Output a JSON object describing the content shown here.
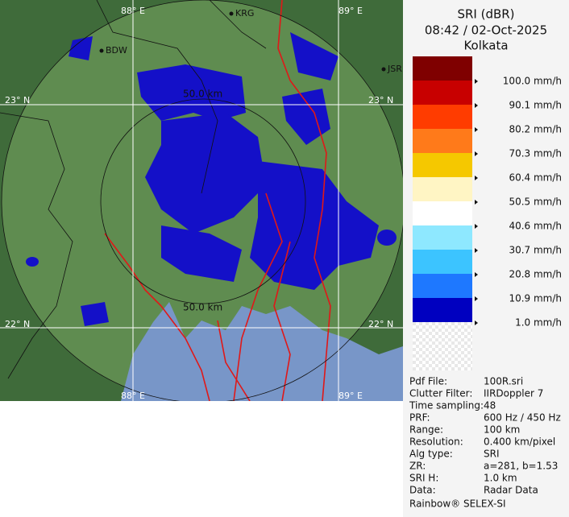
{
  "header": {
    "product": "SRI (dBR)",
    "time": "08:42 / 02-Oct-2025",
    "site": "Kolkata"
  },
  "map": {
    "grid_labels": [
      "88° E",
      "89° E",
      "23° N",
      "22° N"
    ],
    "cities": [
      "KRG",
      "BDW",
      "JSR"
    ],
    "range_label": "50.0 km"
  },
  "legend": {
    "colors": [
      "#7f0000",
      "#c80000",
      "#ff3c00",
      "#ff7a1a",
      "#f5c800",
      "#fff5c4",
      "#ffffff",
      "#8ee8ff",
      "#3cc4ff",
      "#1e78ff",
      "#0000c0"
    ],
    "labels": [
      "100.0 mm/h",
      "90.1 mm/h",
      "80.2 mm/h",
      "70.3 mm/h",
      "60.4 mm/h",
      "50.5 mm/h",
      "40.6 mm/h",
      "30.7 mm/h",
      "20.8 mm/h",
      "10.9 mm/h",
      "1.0 mm/h"
    ]
  },
  "info": [
    [
      "Pdf File:",
      "100R.sri"
    ],
    [
      "Clutter Filter:",
      "IIRDoppler 7"
    ],
    [
      "Time sampling:",
      "48"
    ],
    [
      "PRF:",
      "600 Hz / 450 Hz"
    ],
    [
      "Range:",
      "100 km"
    ],
    [
      "Resolution:",
      "0.400 km/pixel"
    ],
    [
      "Alg type:",
      "SRI"
    ],
    [
      "ZR:",
      "a=281, b=1.53"
    ],
    [
      "SRI H:",
      "1.0 km"
    ],
    [
      "Data:",
      "Radar Data"
    ]
  ],
  "footer": "Rainbow® SELEX-SI"
}
